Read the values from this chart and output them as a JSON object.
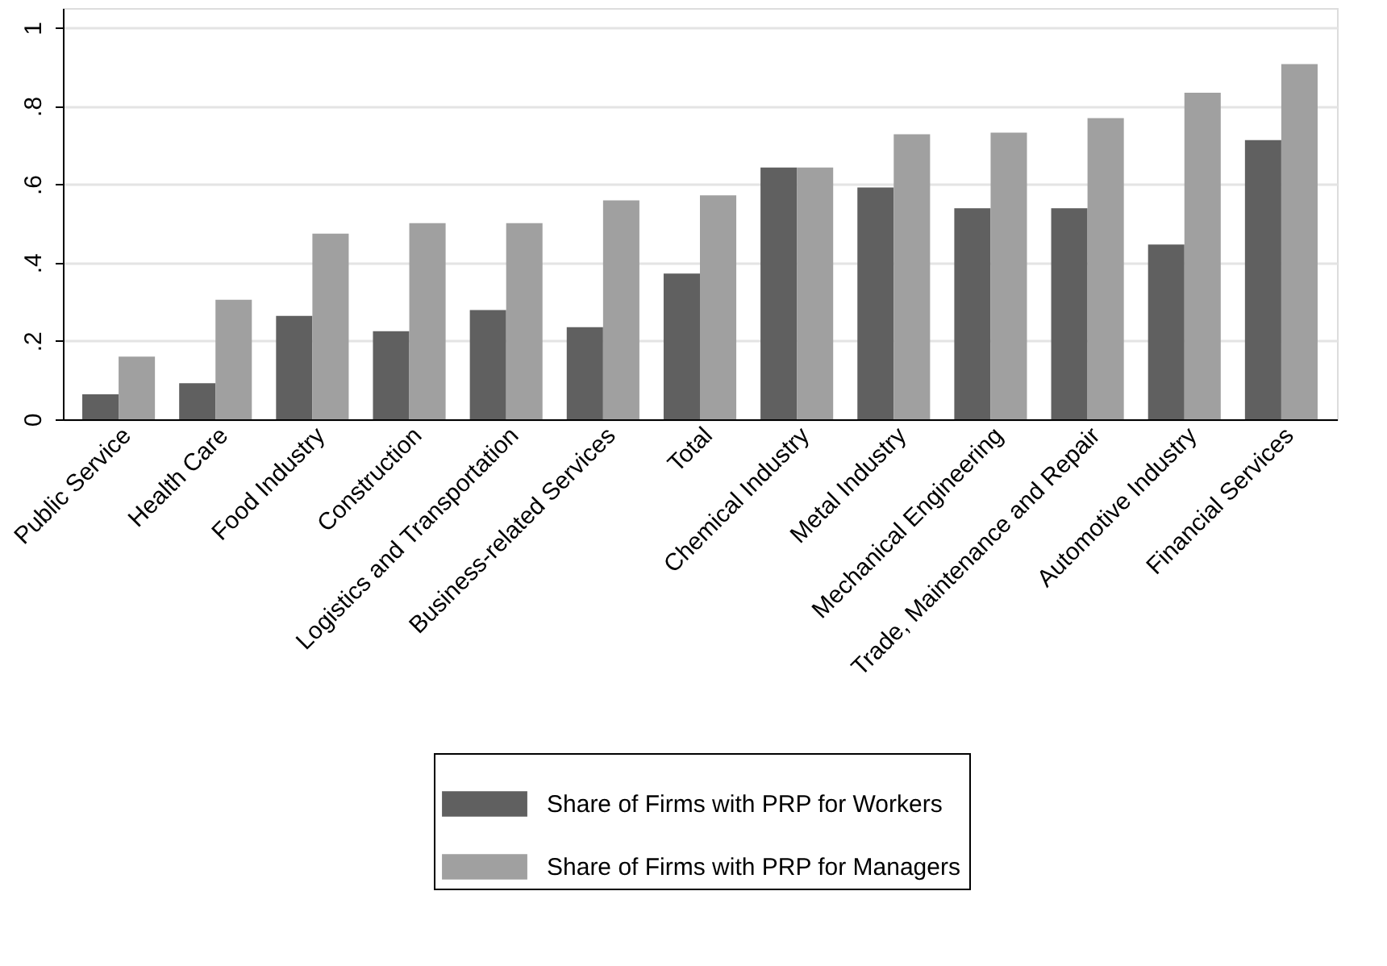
{
  "chart_data": {
    "type": "bar",
    "categories": [
      "Public Service",
      "Health Care",
      "Food Industry",
      "Construction",
      "Logistics and Transportation",
      "Business-related Services",
      "Total",
      "Chemical Industry",
      "Metal Industry",
      "Mechanical Engineering",
      "Trade, Maintenance and Repair",
      "Automotive Industry",
      "Financial Services"
    ],
    "series": [
      {
        "name": "Share of Firms with PRP for Workers",
        "color": "#606060",
        "values": [
          0.064,
          0.092,
          0.264,
          0.225,
          0.279,
          0.235,
          0.372,
          0.643,
          0.592,
          0.539,
          0.539,
          0.446,
          0.713
        ]
      },
      {
        "name": "Share of Firms with PRP for Managers",
        "color": "#a0a0a0",
        "values": [
          0.16,
          0.305,
          0.474,
          0.501,
          0.501,
          0.559,
          0.572,
          0.643,
          0.728,
          0.732,
          0.769,
          0.834,
          0.907
        ]
      }
    ],
    "ylim": [
      0,
      1.05
    ],
    "yticks": [
      {
        "value": 0,
        "label": "0"
      },
      {
        "value": 0.2,
        "label": ".2"
      },
      {
        "value": 0.4,
        "label": ".4"
      },
      {
        "value": 0.6,
        "label": ".6"
      },
      {
        "value": 0.8,
        "label": ".8"
      },
      {
        "value": 1,
        "label": "1"
      }
    ],
    "grid": "y",
    "legend": "bottom"
  }
}
